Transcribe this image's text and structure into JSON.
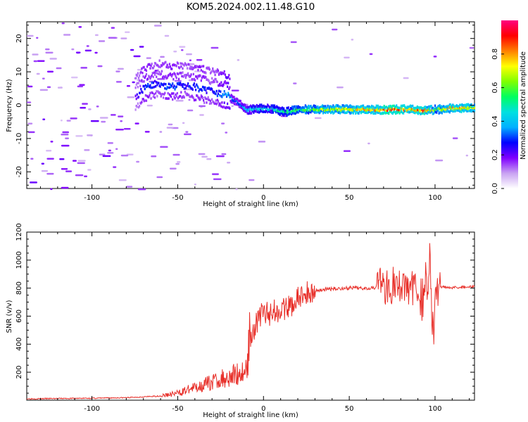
{
  "title": "KOM5.2024.002.11.48.G10",
  "chart_data": [
    {
      "type": "heatmap",
      "xlabel": "Height of straight line (km)",
      "ylabel": "Frequency (Hz)",
      "xlim": [
        -138,
        123
      ],
      "ylim": [
        -25,
        25
      ],
      "xticks": [
        -100,
        -50,
        0,
        50,
        100
      ],
      "yticks": [
        -20,
        -10,
        0,
        10,
        20
      ],
      "grid": false,
      "colorbar": {
        "label": "Normalized spectral amplitude",
        "range": [
          0,
          1
        ],
        "ticks": [
          "0.0",
          "0.2",
          "0.4",
          "0.6",
          "0.8"
        ],
        "colors": [
          "#ffffff",
          "#c9a2f2",
          "#7f00ff",
          "#0000ff",
          "#00b0ff",
          "#00e0e0",
          "#00ff60",
          "#80ff00",
          "#ffff00",
          "#ff8000",
          "#ff0000",
          "#ff0080"
        ]
      },
      "signal_track": {
        "description_points": [
          {
            "x": -75,
            "freq": 2,
            "amp": 0.2
          },
          {
            "x": -70,
            "freq": 5,
            "amp": 0.3
          },
          {
            "x": -62,
            "freq": 6.5,
            "amp": 0.25
          },
          {
            "x": -55,
            "freq": 5.5,
            "amp": 0.3
          },
          {
            "x": -45,
            "freq": 6,
            "amp": 0.25
          },
          {
            "x": -38,
            "freq": 5,
            "amp": 0.3
          },
          {
            "x": -30,
            "freq": 4,
            "amp": 0.25
          },
          {
            "x": -22,
            "freq": 3,
            "amp": 0.35
          },
          {
            "x": -15,
            "freq": 0.5,
            "amp": 0.3
          },
          {
            "x": -10,
            "freq": -1.5,
            "amp": 0.4
          },
          {
            "x": -2,
            "freq": -1,
            "amp": 0.45
          },
          {
            "x": 5,
            "freq": -1.2,
            "amp": 0.45
          },
          {
            "x": 12,
            "freq": -2.2,
            "amp": 0.5
          },
          {
            "x": 20,
            "freq": -1.4,
            "amp": 0.55
          },
          {
            "x": 35,
            "freq": -1.3,
            "amp": 0.65
          },
          {
            "x": 50,
            "freq": -1.3,
            "amp": 0.7
          },
          {
            "x": 65,
            "freq": -1.4,
            "amp": 0.75
          },
          {
            "x": 75,
            "freq": -1.4,
            "amp": 0.85
          },
          {
            "x": 85,
            "freq": -1.3,
            "amp": 0.75
          },
          {
            "x": 92,
            "freq": -1.7,
            "amp": 0.8
          },
          {
            "x": 100,
            "freq": -1.4,
            "amp": 0.6
          },
          {
            "x": 110,
            "freq": -1.0,
            "amp": 0.75
          },
          {
            "x": 123,
            "freq": -0.8,
            "amp": 0.7
          }
        ]
      }
    },
    {
      "type": "line",
      "xlabel": "Height of straight line (km)",
      "ylabel": "SNR (v/v)",
      "xlim": [
        -138,
        123
      ],
      "ylim": [
        0,
        1200
      ],
      "xticks": [
        -100,
        -50,
        0,
        50,
        100
      ],
      "yticks": [
        200,
        400,
        600,
        800,
        1000,
        1200
      ],
      "grid": false,
      "color": "#e8302a",
      "x": [
        -138,
        -120,
        -100,
        -80,
        -60,
        -50,
        -45,
        -40,
        -35,
        -30,
        -25,
        -20,
        -15,
        -12,
        -10,
        -9,
        -8,
        -6,
        -3,
        0,
        3,
        5,
        8,
        10,
        12,
        15,
        18,
        20,
        22,
        25,
        28,
        30,
        35,
        40,
        45,
        50,
        55,
        60,
        65,
        68,
        70,
        72,
        74,
        76,
        78,
        80,
        85,
        90,
        93,
        95,
        96,
        97,
        98,
        99,
        100,
        101,
        102,
        105,
        110,
        115,
        123
      ],
      "values": [
        10,
        12,
        14,
        18,
        30,
        50,
        70,
        90,
        110,
        130,
        150,
        170,
        190,
        200,
        220,
        300,
        460,
        500,
        580,
        640,
        600,
        660,
        620,
        680,
        640,
        660,
        700,
        720,
        740,
        760,
        770,
        780,
        790,
        795,
        798,
        800,
        800,
        802,
        805,
        870,
        780,
        840,
        760,
        850,
        790,
        820,
        800,
        810,
        700,
        900,
        760,
        1180,
        640,
        420,
        690,
        800,
        805,
        810,
        805,
        808,
        810
      ]
    }
  ]
}
